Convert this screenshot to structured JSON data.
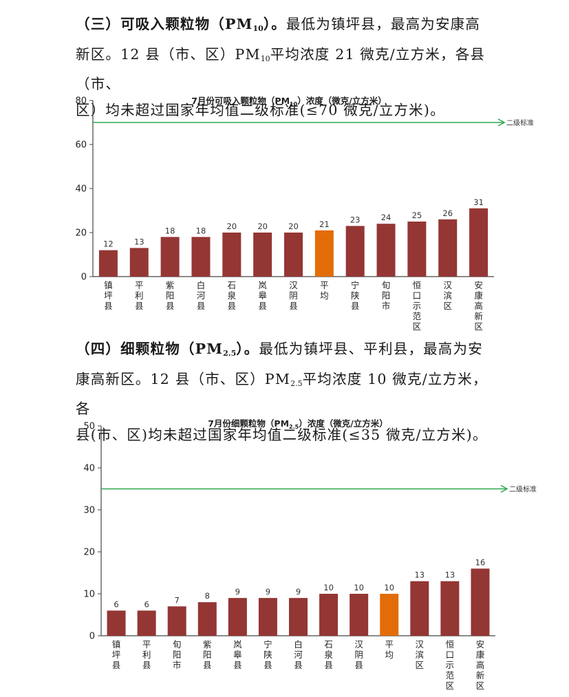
{
  "sections": [
    {
      "heading": "（三）可吸入颗粒物（PM",
      "heading_sub": "10",
      "heading_end": "）。",
      "line1_rest": "最低为镇坪县，最高为安康高",
      "line2_a": "新区。12 县（市、区）PM",
      "line2_sub": "10",
      "line2_b": "平均浓度 21 微克/立方米，各县（市、",
      "line3": "区）均未超过国家年均值二级标准(≤70 微克/立方米)。"
    },
    {
      "heading": "（四）细颗粒物（PM",
      "heading_sub": "2.5",
      "heading_end": "）。",
      "line1_rest": "最低为镇坪县、平利县，最高为安",
      "line2_a": "康高新区。12 县（市、区）PM",
      "line2_sub": "2.5",
      "line2_b": "平均浓度 10 微克/立方米，各",
      "line3": "县(市、区)均未超过国家年均值二级标准(≤35 微克/立方米)。"
    }
  ],
  "colors": {
    "bar": "#943634",
    "average_bar": "#e36c09",
    "standard_line": "#2aa84a",
    "axis": "#444444"
  },
  "chart_data": [
    {
      "type": "bar",
      "title": "7月份可吸入颗粒物（PM",
      "title_sub": "10",
      "title_end": "）浓度（微克/立方米）",
      "categories": [
        "镇坪县",
        "平利县",
        "紫阳县",
        "白河县",
        "石泉县",
        "岚皋县",
        "汉阴县",
        "平均",
        "宁陕县",
        "旬阳市",
        "恒口示范区",
        "汉滨区",
        "安康高新区"
      ],
      "values": [
        12,
        13,
        18,
        18,
        20,
        20,
        20,
        21,
        23,
        24,
        25,
        26,
        31
      ],
      "highlight": "平均",
      "ylim": [
        0,
        80
      ],
      "yticks": [
        "0",
        "20",
        "40",
        "60",
        "80"
      ],
      "ytick_values": [
        0,
        20,
        40,
        60,
        80
      ],
      "reference_line": {
        "label": "二级标准",
        "value": 70
      },
      "data_labels": true,
      "grid": false
    },
    {
      "type": "bar",
      "title": "7月份细颗粒物（PM",
      "title_sub": "2.5",
      "title_end": "）浓度（微克/立方米）",
      "categories": [
        "镇坪县",
        "平利县",
        "旬阳市",
        "紫阳县",
        "岚皋县",
        "宁陕县",
        "白河县",
        "石泉县",
        "汉阴县",
        "平均",
        "汉滨区",
        "恒口示范区",
        "安康高新区"
      ],
      "values": [
        6,
        6,
        7,
        8,
        9,
        9,
        9,
        10,
        10,
        10,
        13,
        13,
        16
      ],
      "highlight": "平均",
      "ylim": [
        0,
        50
      ],
      "yticks": [
        "0",
        "10",
        "20",
        "30",
        "40",
        "50"
      ],
      "ytick_values": [
        0,
        10,
        20,
        30,
        40,
        50
      ],
      "reference_line": {
        "label": "二级标准",
        "value": 35
      },
      "data_labels": true,
      "grid": false
    }
  ]
}
